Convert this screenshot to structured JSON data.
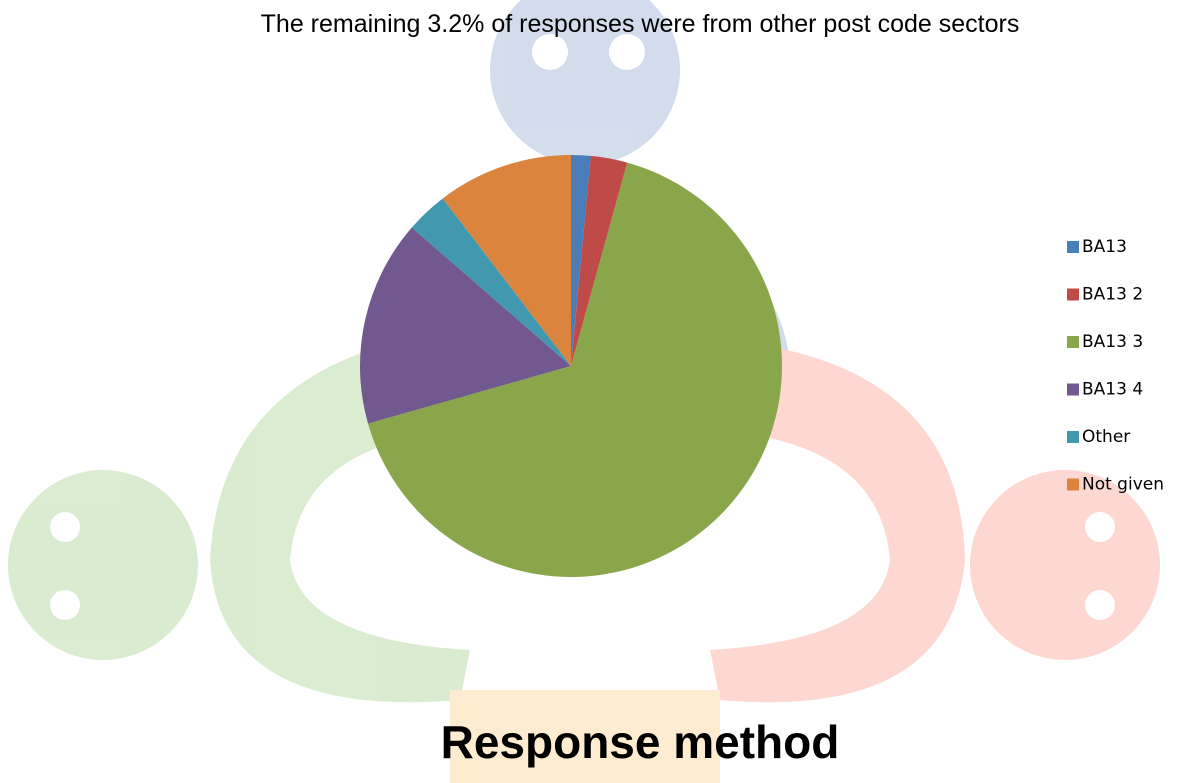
{
  "subtitle": "The remaining 3.2% of responses were from other post code sectors",
  "chart_data": {
    "type": "pie",
    "title": "Response method",
    "categories": [
      "BA13",
      "BA13 2",
      "BA13 3",
      "BA13 4",
      "Other",
      "Not given"
    ],
    "values": [
      1.5,
      2.8,
      66.3,
      15.8,
      3.2,
      10.4
    ],
    "colors": [
      "#4a7ebb",
      "#be4b48",
      "#8aa64b",
      "#71588f",
      "#4298af",
      "#db843d"
    ],
    "legend": "right"
  }
}
